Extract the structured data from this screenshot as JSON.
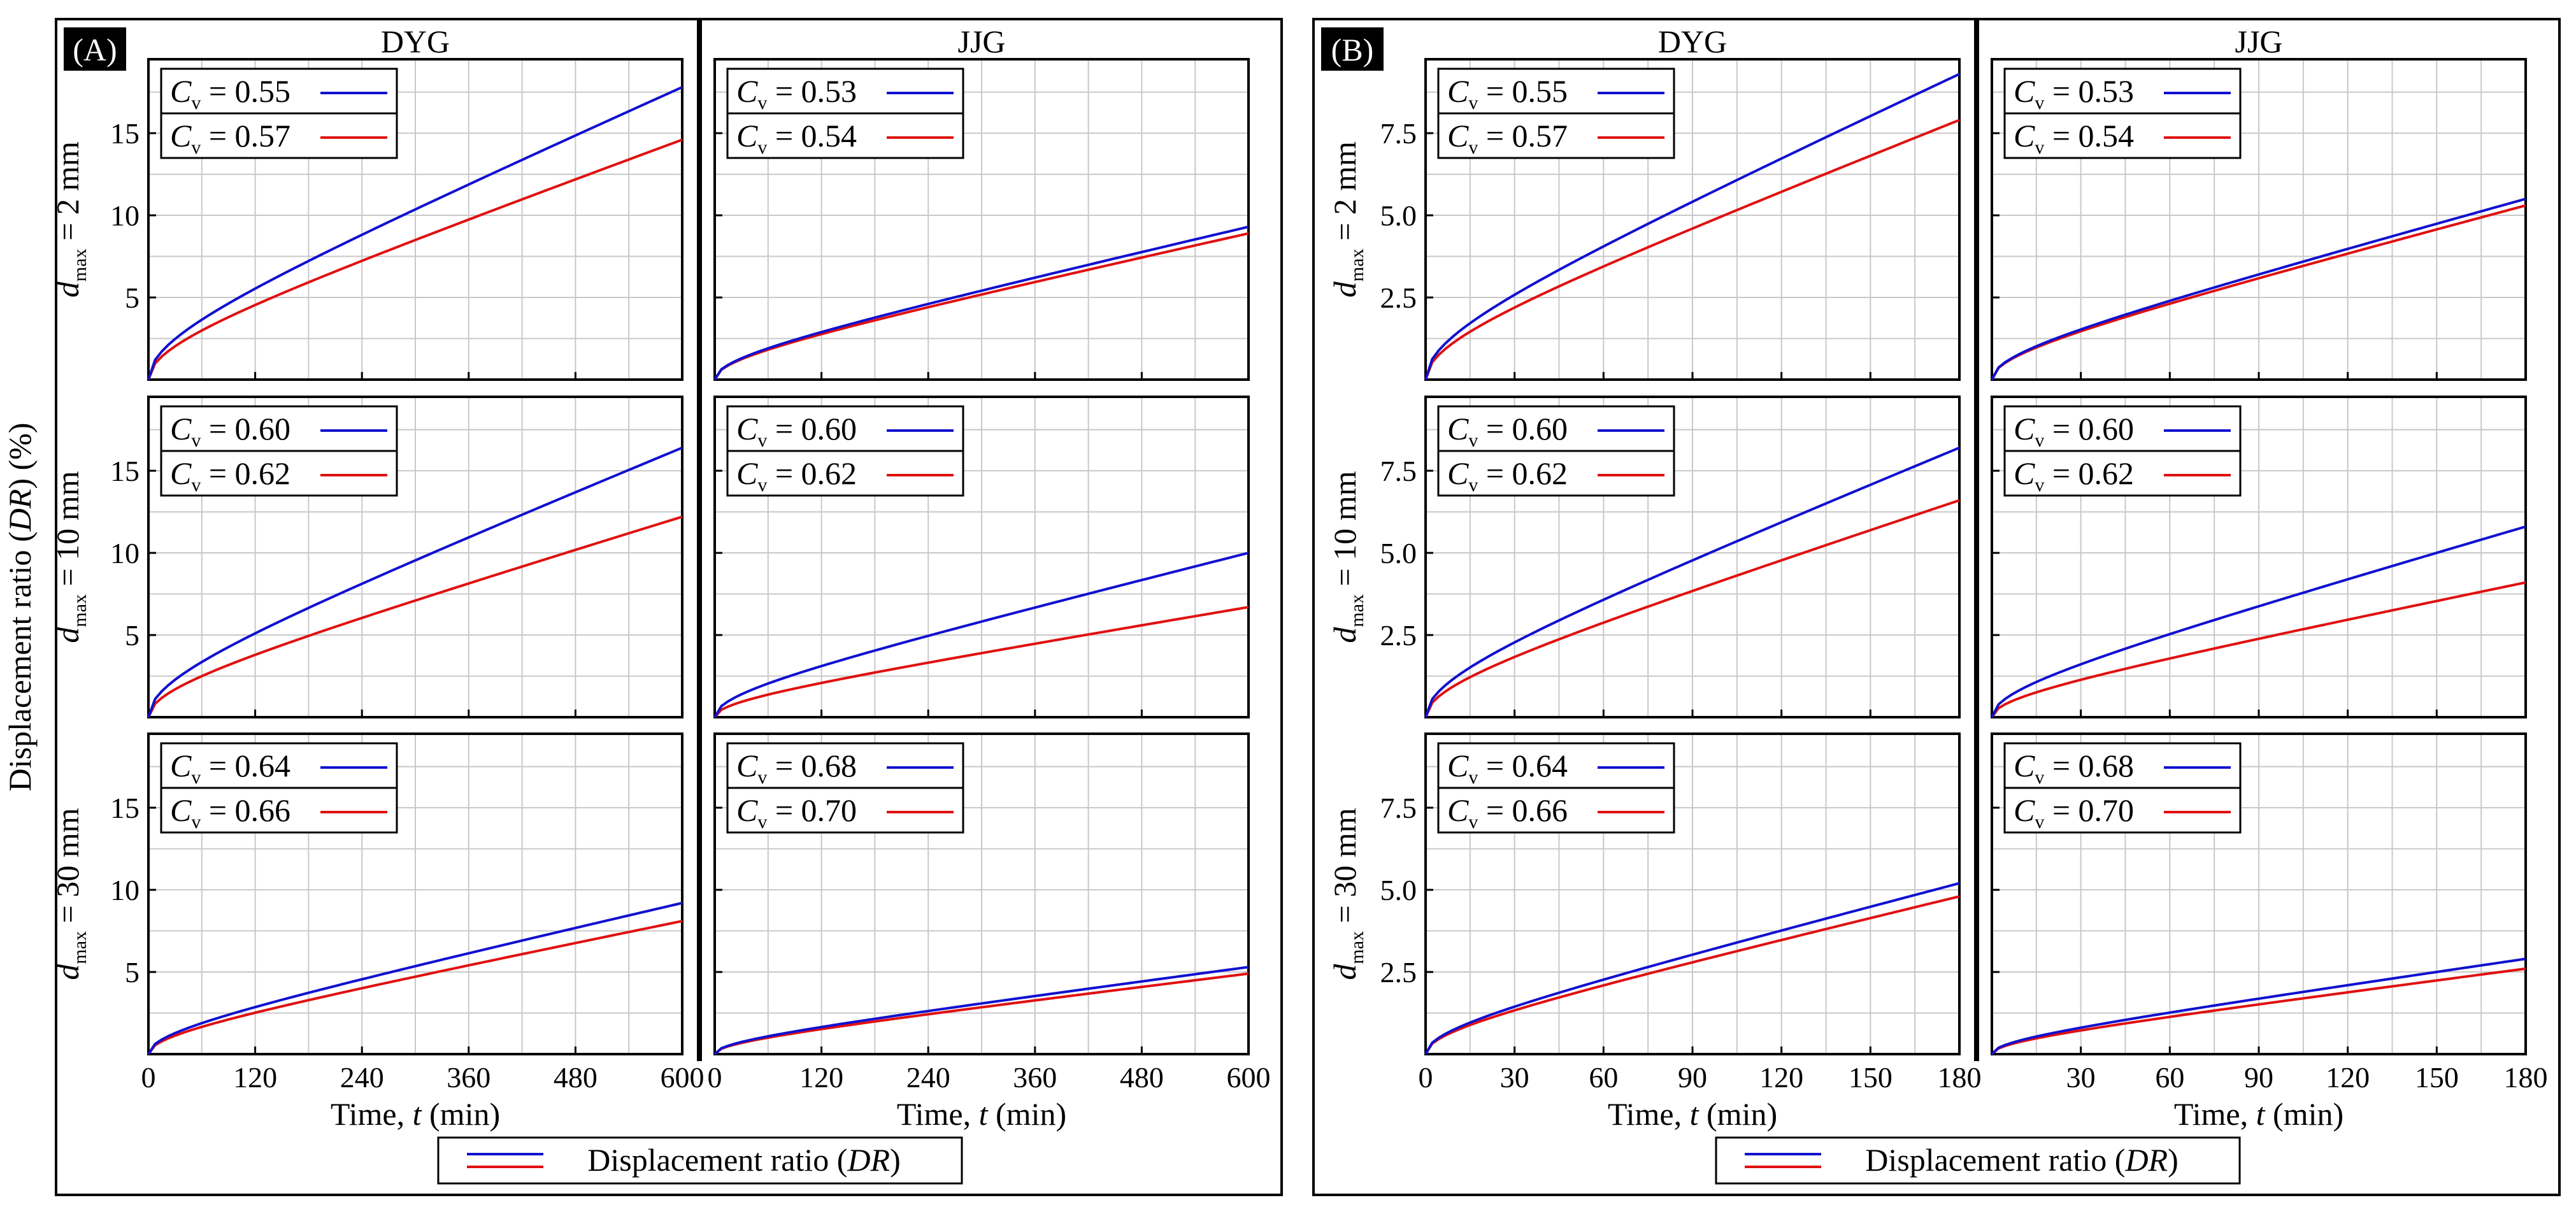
{
  "figure": {
    "y_axis_title": "Displacement ratio (DR) (%)",
    "x_axis_title": "Time, t (min)",
    "legend_label": "Displacement ratio (DR)",
    "row_labels": [
      "d_max = 2 mm",
      "d_max = 10 mm",
      "d_max = 30 mm"
    ],
    "colors": {
      "blue": "#1010d0",
      "red": "#e01010",
      "grid": "#c8c8c8"
    }
  },
  "chart_data": [
    {
      "panel": "(A)",
      "type": "line",
      "columns": [
        "DYG",
        "JJG"
      ],
      "x_range": [
        0,
        600
      ],
      "x_ticks": [
        0,
        120,
        240,
        360,
        480,
        600
      ],
      "x_tick_labels": [
        [
          "0",
          "120",
          "240",
          "360",
          "480",
          "600"
        ],
        [
          "0",
          "120",
          "240",
          "360",
          "480",
          "600"
        ]
      ],
      "y_range": [
        0,
        19.5
      ],
      "y_ticks": [
        5,
        10,
        15
      ],
      "y_tick_labels": [
        "5",
        "10",
        "15"
      ],
      "xlabel": "Time, t (min)",
      "cells": [
        [
          {
            "legend": [
              "C_v = 0.55",
              "C_v = 0.57"
            ],
            "blue_end": 17.8,
            "red_end": 14.6
          },
          {
            "legend": [
              "C_v = 0.53",
              "C_v = 0.54"
            ],
            "blue_end": 9.3,
            "red_end": 8.9
          }
        ],
        [
          {
            "legend": [
              "C_v = 0.60",
              "C_v = 0.62"
            ],
            "blue_end": 16.4,
            "red_end": 12.2
          },
          {
            "legend": [
              "C_v = 0.60",
              "C_v = 0.62"
            ],
            "blue_end": 10.0,
            "red_end": 6.7
          }
        ],
        [
          {
            "legend": [
              "C_v = 0.64",
              "C_v = 0.66"
            ],
            "blue_end": 9.2,
            "red_end": 8.1
          },
          {
            "legend": [
              "C_v = 0.68",
              "C_v = 0.70"
            ],
            "blue_end": 5.3,
            "red_end": 4.9
          }
        ]
      ]
    },
    {
      "panel": "(B)",
      "type": "line",
      "columns": [
        "DYG",
        "JJG"
      ],
      "x_range": [
        0,
        180
      ],
      "x_ticks": [
        0,
        30,
        60,
        90,
        120,
        150,
        180
      ],
      "x_tick_labels": [
        [
          "0",
          "30",
          "60",
          "90",
          "120",
          "150",
          "180"
        ],
        [
          "",
          "30",
          "60",
          "90",
          "120",
          "150",
          "180"
        ]
      ],
      "y_range": [
        0,
        9.75
      ],
      "y_ticks": [
        2.5,
        5.0,
        7.5
      ],
      "y_tick_labels": [
        "2.5",
        "5.0",
        "7.5"
      ],
      "xlabel": "Time, t (min)",
      "cells": [
        [
          {
            "legend": [
              "C_v = 0.55",
              "C_v = 0.57"
            ],
            "blue_end": 9.3,
            "red_end": 7.9
          },
          {
            "legend": [
              "C_v = 0.53",
              "C_v = 0.54"
            ],
            "blue_end": 5.5,
            "red_end": 5.3
          }
        ],
        [
          {
            "legend": [
              "C_v = 0.60",
              "C_v = 0.62"
            ],
            "blue_end": 8.2,
            "red_end": 6.6
          },
          {
            "legend": [
              "C_v = 0.60",
              "C_v = 0.62"
            ],
            "blue_end": 5.8,
            "red_end": 4.1
          }
        ],
        [
          {
            "legend": [
              "C_v = 0.64",
              "C_v = 0.66"
            ],
            "blue_end": 5.2,
            "red_end": 4.8
          },
          {
            "legend": [
              "C_v = 0.68",
              "C_v = 0.70"
            ],
            "blue_end": 2.9,
            "red_end": 2.6
          }
        ]
      ]
    }
  ]
}
